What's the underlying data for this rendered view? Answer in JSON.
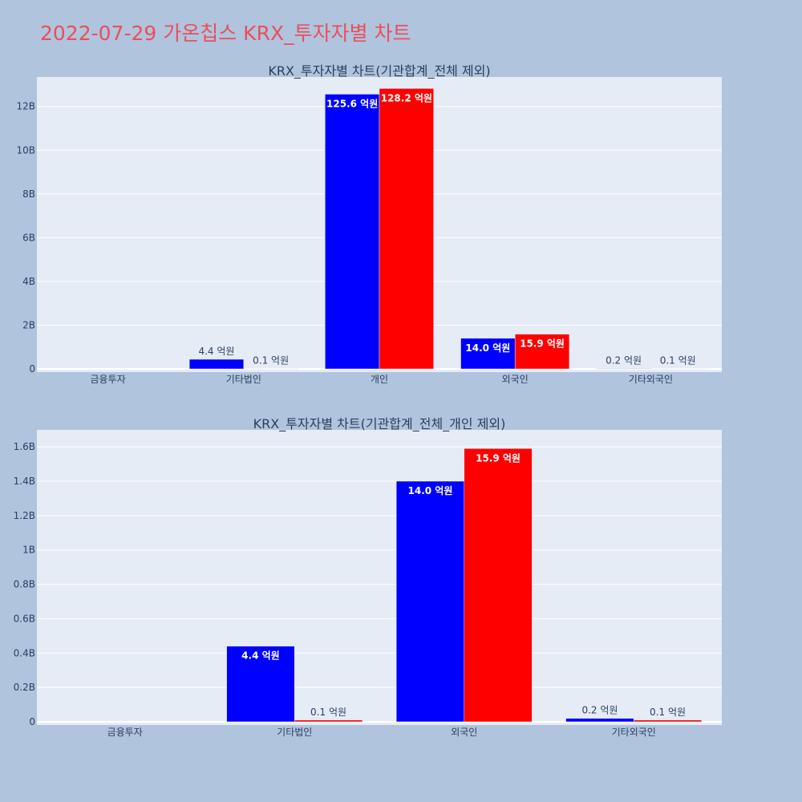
{
  "page_title": "2022-07-29 가온칩스 KRX_투자자별 차트",
  "colors": {
    "buy": "#0000ff",
    "sell": "#ff0000",
    "title": "#e8505b"
  },
  "chart_data": [
    {
      "type": "bar",
      "title": "KRX_투자자별 차트(기관합계_전체 제외)",
      "categories": [
        "금융투자",
        "기타법인",
        "개인",
        "외국인",
        "기타외국인"
      ],
      "series": [
        {
          "color": "#0000ff",
          "values": [
            0,
            440000000,
            12560000000,
            1400000000,
            20000000
          ],
          "labels": [
            "",
            "4.4 억원",
            "125.6 억원",
            "14.0 억원",
            "0.2 억원"
          ]
        },
        {
          "color": "#ff0000",
          "values": [
            0,
            10000000,
            12820000000,
            1590000000,
            10000000
          ],
          "labels": [
            "",
            "0.1 억원",
            "128.2 억원",
            "15.9 억원",
            "0.1 억원"
          ]
        }
      ],
      "ylim": [
        0,
        13200000000
      ],
      "yticks": [
        0,
        2000000000,
        4000000000,
        6000000000,
        8000000000,
        10000000000,
        12000000000
      ],
      "ytick_labels": [
        "0",
        "2B",
        "4B",
        "6B",
        "8B",
        "10B",
        "12B"
      ],
      "grid": true
    },
    {
      "type": "bar",
      "title": "KRX_투자자별 차트(기관합계_전체_개인 제외)",
      "categories": [
        "금융투자",
        "기타법인",
        "외국인",
        "기타외국인"
      ],
      "series": [
        {
          "color": "#0000ff",
          "values": [
            0,
            440000000,
            1400000000,
            20000000
          ],
          "labels": [
            "",
            "4.4 억원",
            "14.0 억원",
            "0.2 억원"
          ]
        },
        {
          "color": "#ff0000",
          "values": [
            0,
            10000000,
            1590000000,
            10000000
          ],
          "labels": [
            "",
            "0.1 억원",
            "15.9 억원",
            "0.1 억원"
          ]
        }
      ],
      "ylim": [
        0,
        1680000000
      ],
      "yticks": [
        0,
        200000000,
        400000000,
        600000000,
        800000000,
        1000000000,
        1200000000,
        1400000000,
        1600000000
      ],
      "ytick_labels": [
        "0",
        "0.2B",
        "0.4B",
        "0.6B",
        "0.8B",
        "1B",
        "1.2B",
        "1.4B",
        "1.6B"
      ],
      "grid": true
    }
  ]
}
